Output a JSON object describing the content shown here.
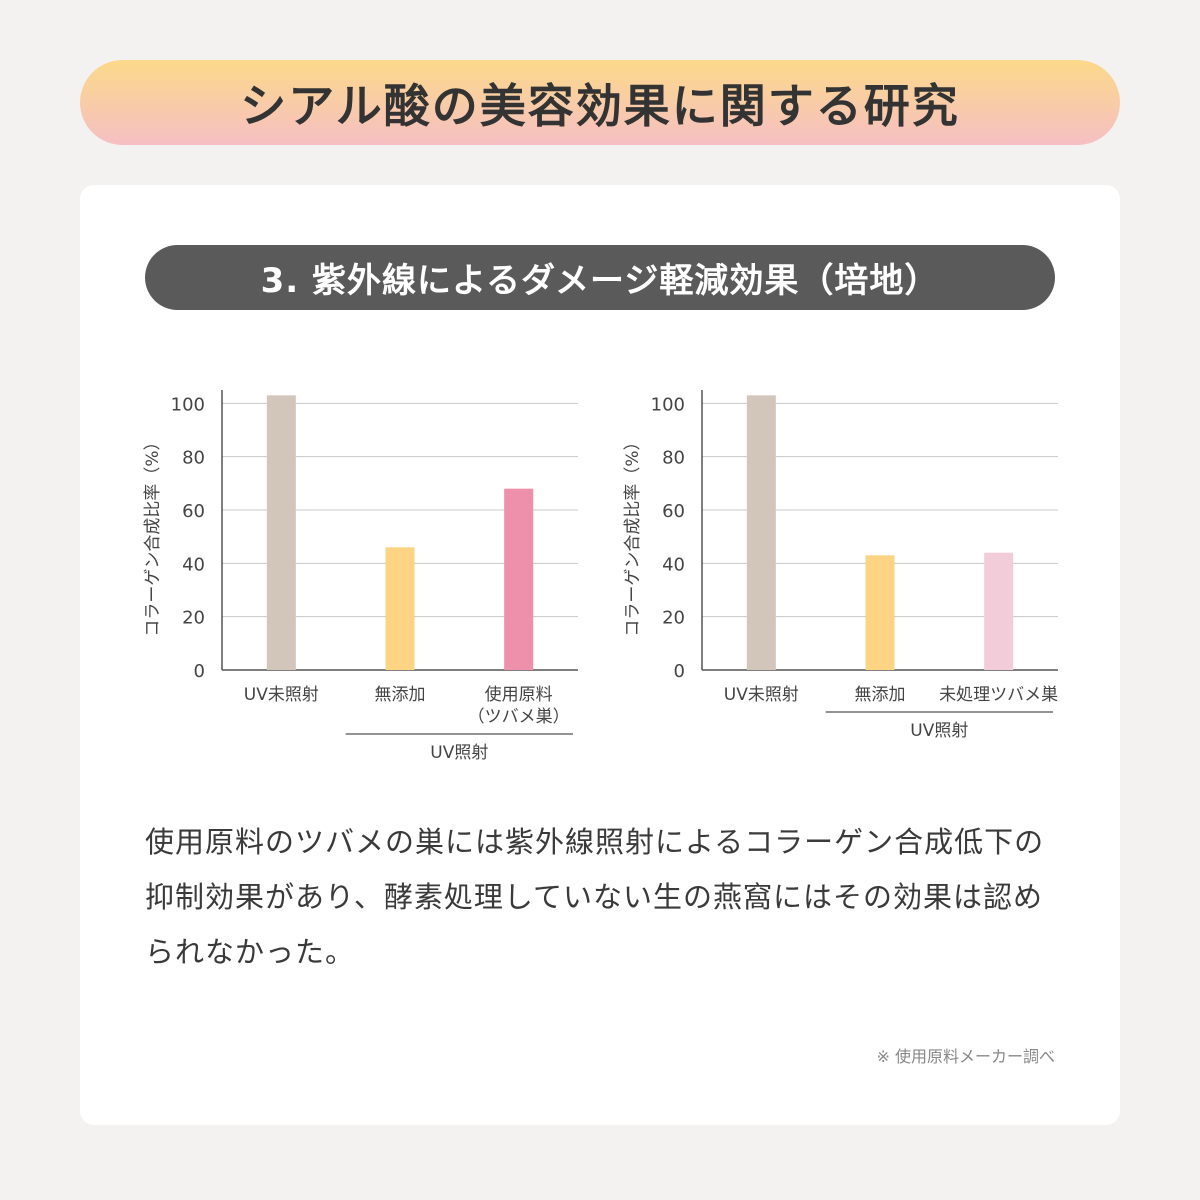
{
  "header": {
    "title": "シアル酸の美容効果に関する研究"
  },
  "section": {
    "title": "3. 紫外線によるダメージ軽減効果（培地）"
  },
  "chart_data": [
    {
      "type": "bar",
      "ylabel": "コラーゲン合成比率（%）",
      "ylim": [
        0,
        105
      ],
      "yticks": [
        0,
        20,
        40,
        60,
        80,
        100
      ],
      "categories": [
        "UV未照射",
        "無添加",
        "使用原料\n（ツバメ巣）"
      ],
      "values": [
        103,
        46,
        68
      ],
      "colors": [
        "#d2c5ba",
        "#fdd484",
        "#ee8fac"
      ],
      "group_label": "UV照射",
      "group_span": [
        1,
        2
      ],
      "grid": true
    },
    {
      "type": "bar",
      "ylabel": "コラーゲン合成比率（%）",
      "ylim": [
        0,
        105
      ],
      "yticks": [
        0,
        20,
        40,
        60,
        80,
        100
      ],
      "categories": [
        "UV未照射",
        "無添加",
        "未処理ツバメ巣"
      ],
      "values": [
        103,
        43,
        44
      ],
      "colors": [
        "#d2c5ba",
        "#fdd484",
        "#f2cdd9"
      ],
      "group_label": "UV照射",
      "group_span": [
        1,
        2
      ],
      "grid": true
    }
  ],
  "body": {
    "text": "使用原料のツバメの巣には紫外線照射によるコラーゲン合成低下の抑制効果があり、酵素処理していない生の燕窩にはその効果は認められなかった。"
  },
  "footnote": "※ 使用原料メーカー調べ"
}
